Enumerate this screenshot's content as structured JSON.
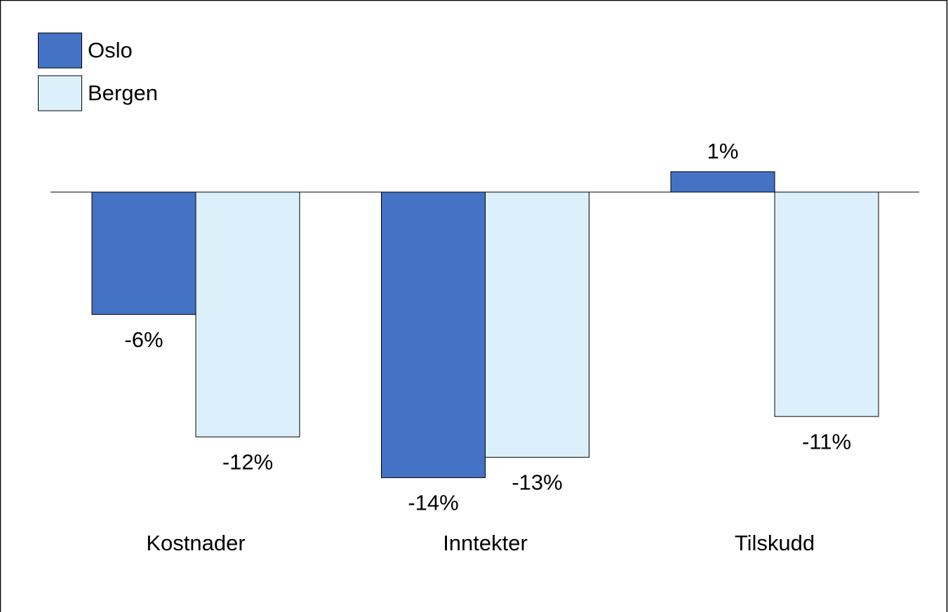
{
  "chart_data": {
    "type": "bar",
    "categories": [
      "Kostnader",
      "Inntekter",
      "Tilskudd"
    ],
    "series": [
      {
        "name": "Oslo",
        "color": "#4472c4",
        "values": [
          -6,
          -14,
          1
        ],
        "value_labels": [
          "-6%",
          "-14%",
          "1%"
        ]
      },
      {
        "name": "Bergen",
        "color": "#dcf0fc",
        "values": [
          -12,
          -13,
          -11
        ],
        "value_labels": [
          "-12%",
          "-13%",
          "-11%"
        ]
      }
    ],
    "legend": "top-left"
  }
}
